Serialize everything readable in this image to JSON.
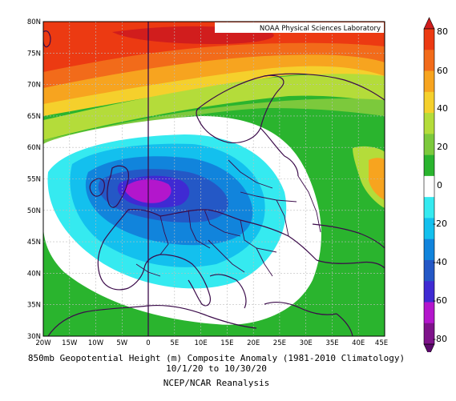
{
  "map": {
    "credit": "NOAA Physical Sciences Laboratory",
    "lat_labels": [
      "80N",
      "75N",
      "70N",
      "65N",
      "60N",
      "55N",
      "50N",
      "45N",
      "40N",
      "35N",
      "30N"
    ],
    "lon_labels": [
      "20W",
      "15W",
      "10W",
      "5W",
      "0",
      "5E",
      "10E",
      "15E",
      "20E",
      "25E",
      "30E",
      "35E",
      "40E",
      "45E"
    ],
    "extent": {
      "lon": [
        -20,
        45
      ],
      "lat": [
        30,
        80
      ]
    }
  },
  "colorbar": {
    "labels": [
      "80",
      "60",
      "40",
      "20",
      "0",
      "-20",
      "-40",
      "-60",
      "-80"
    ],
    "colors": [
      "#d11d1d",
      "#ec3a12",
      "#f26b1a",
      "#f7a41f",
      "#f5d02c",
      "#b4dc3a",
      "#7cc93c",
      "#2ab42e",
      "#ffffff",
      "#35eaf0",
      "#13c0ee",
      "#1184dc",
      "#2458c6",
      "#3f2ad3",
      "#b316cc",
      "#7e138a",
      "#5c0a6c"
    ]
  },
  "caption": {
    "line1": "850mb Geopotential Height (m) Composite Anomaly (1981-2010 Climatology)",
    "line2": "10/1/20  to 10/30/20",
    "line3": "NCEP/NCAR Reanalysis"
  }
}
